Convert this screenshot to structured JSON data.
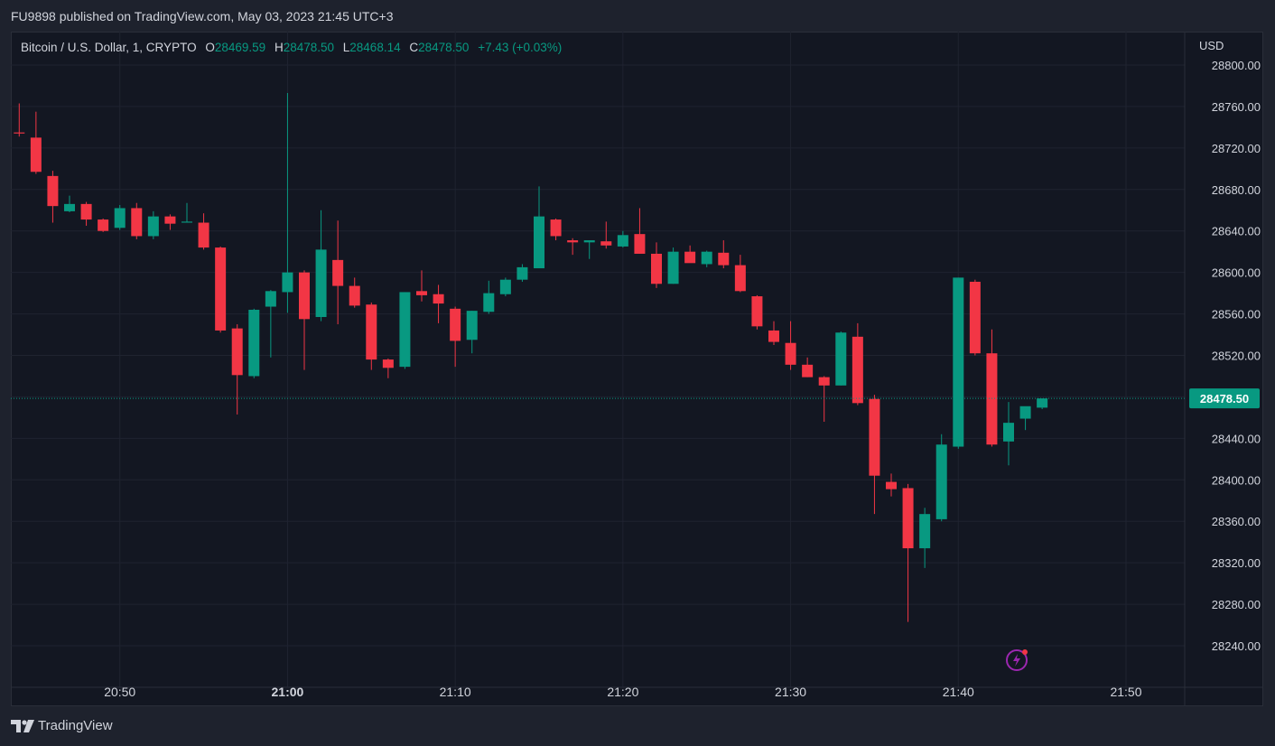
{
  "header": {
    "published": "FU9898 published on TradingView.com, May 03, 2023 21:45 UTC+3"
  },
  "legend": {
    "symbol": "Bitcoin / U.S. Dollar, 1, CRYPTO",
    "o_label": "O",
    "o_value": "28469.59",
    "h_label": "H",
    "h_value": "28478.50",
    "l_label": "L",
    "l_value": "28468.14",
    "c_label": "C",
    "c_value": "28478.50",
    "change": "+7.43 (+0.03%)"
  },
  "price_axis": {
    "currency": "USD"
  },
  "footer": {
    "brand": "TradingView"
  },
  "colors": {
    "up": "#089981",
    "down": "#f23645",
    "background": "#131722",
    "grid": "#1f2330",
    "text": "#d1d4dc"
  },
  "icons": {
    "brand_logo": "tradingview-logo-icon",
    "indicator": "lightning-bolt-icon"
  },
  "chart_data": {
    "type": "candlestick",
    "interval": "1 minute",
    "ylim": [
      28220,
      28820
    ],
    "yticks": [
      28800,
      28760,
      28720,
      28680,
      28640,
      28600,
      28560,
      28520,
      28480,
      28440,
      28400,
      28360,
      28320,
      28280,
      28240
    ],
    "ytick_labels": [
      "28800.00",
      "28760.00",
      "28720.00",
      "28680.00",
      "28640.00",
      "28600.00",
      "28560.00",
      "28520.00",
      "28440.00",
      "28400.00",
      "28360.00",
      "28320.00",
      "28280.00",
      "28240.00"
    ],
    "xlim": [
      "20:43:30",
      "21:53:30"
    ],
    "xticks": [
      "20:50",
      "21:00",
      "21:10",
      "21:20",
      "21:30",
      "21:40",
      "21:50"
    ],
    "xtick_bold": [
      "21:00"
    ],
    "last_price": 28478.5,
    "last_price_label": "28478.50",
    "grid": true,
    "candles": [
      {
        "t": "20:44",
        "o": 28735,
        "h": 28763,
        "l": 28731,
        "c": 28734
      },
      {
        "t": "20:45",
        "o": 28730,
        "h": 28755,
        "l": 28695,
        "c": 28697
      },
      {
        "t": "20:46",
        "o": 28693,
        "h": 28698,
        "l": 28648,
        "c": 28664
      },
      {
        "t": "20:47",
        "o": 28659,
        "h": 28674,
        "l": 28658,
        "c": 28666
      },
      {
        "t": "20:48",
        "o": 28666,
        "h": 28668,
        "l": 28645,
        "c": 28651
      },
      {
        "t": "20:49",
        "o": 28651,
        "h": 28652,
        "l": 28639,
        "c": 28640
      },
      {
        "t": "20:50",
        "o": 28643,
        "h": 28665,
        "l": 28641,
        "c": 28662
      },
      {
        "t": "20:51",
        "o": 28662,
        "h": 28667,
        "l": 28632,
        "c": 28635
      },
      {
        "t": "20:52",
        "o": 28635,
        "h": 28659,
        "l": 28632,
        "c": 28654
      },
      {
        "t": "20:53",
        "o": 28654,
        "h": 28656,
        "l": 28641,
        "c": 28647
      },
      {
        "t": "20:54",
        "o": 28648,
        "h": 28667,
        "l": 28648,
        "c": 28649
      },
      {
        "t": "20:55",
        "o": 28648,
        "h": 28657,
        "l": 28622,
        "c": 28624
      },
      {
        "t": "20:56",
        "o": 28624,
        "h": 28625,
        "l": 28542,
        "c": 28544
      },
      {
        "t": "20:57",
        "o": 28546,
        "h": 28550,
        "l": 28463,
        "c": 28501
      },
      {
        "t": "20:58",
        "o": 28500,
        "h": 28565,
        "l": 28498,
        "c": 28564
      },
      {
        "t": "20:59",
        "o": 28567,
        "h": 28583,
        "l": 28518,
        "c": 28582
      },
      {
        "t": "21:00",
        "o": 28581,
        "h": 28773,
        "l": 28561,
        "c": 28600
      },
      {
        "t": "21:01",
        "o": 28600,
        "h": 28602,
        "l": 28506,
        "c": 28555
      },
      {
        "t": "21:02",
        "o": 28557,
        "h": 28660,
        "l": 28553,
        "c": 28622
      },
      {
        "t": "21:03",
        "o": 28612,
        "h": 28650,
        "l": 28550,
        "c": 28587
      },
      {
        "t": "21:04",
        "o": 28587,
        "h": 28595,
        "l": 28566,
        "c": 28568
      },
      {
        "t": "21:05",
        "o": 28569,
        "h": 28571,
        "l": 28506,
        "c": 28516
      },
      {
        "t": "21:06",
        "o": 28516,
        "h": 28517,
        "l": 28498,
        "c": 28508
      },
      {
        "t": "21:07",
        "o": 28509,
        "h": 28581,
        "l": 28507,
        "c": 28581
      },
      {
        "t": "21:08",
        "o": 28582,
        "h": 28602,
        "l": 28572,
        "c": 28578
      },
      {
        "t": "21:09",
        "o": 28579,
        "h": 28588,
        "l": 28551,
        "c": 28570
      },
      {
        "t": "21:10",
        "o": 28565,
        "h": 28567,
        "l": 28509,
        "c": 28534
      },
      {
        "t": "21:11",
        "o": 28535,
        "h": 28563,
        "l": 28522,
        "c": 28563
      },
      {
        "t": "21:12",
        "o": 28562,
        "h": 28592,
        "l": 28560,
        "c": 28580
      },
      {
        "t": "21:13",
        "o": 28579,
        "h": 28595,
        "l": 28577,
        "c": 28593
      },
      {
        "t": "21:14",
        "o": 28593,
        "h": 28608,
        "l": 28591,
        "c": 28605
      },
      {
        "t": "21:15",
        "o": 28604,
        "h": 28683,
        "l": 28604,
        "c": 28654
      },
      {
        "t": "21:16",
        "o": 28651,
        "h": 28652,
        "l": 28631,
        "c": 28635
      },
      {
        "t": "21:17",
        "o": 28631,
        "h": 28633,
        "l": 28617,
        "c": 28629
      },
      {
        "t": "21:18",
        "o": 28629,
        "h": 28631,
        "l": 28613,
        "c": 28631
      },
      {
        "t": "21:19",
        "o": 28630,
        "h": 28649,
        "l": 28623,
        "c": 28626
      },
      {
        "t": "21:20",
        "o": 28625,
        "h": 28640,
        "l": 28624,
        "c": 28636
      },
      {
        "t": "21:21",
        "o": 28637,
        "h": 28662,
        "l": 28618,
        "c": 28618
      },
      {
        "t": "21:22",
        "o": 28618,
        "h": 28629,
        "l": 28585,
        "c": 28589
      },
      {
        "t": "21:23",
        "o": 28589,
        "h": 28624,
        "l": 28589,
        "c": 28620
      },
      {
        "t": "21:24",
        "o": 28620,
        "h": 28626,
        "l": 28611,
        "c": 28609
      },
      {
        "t": "21:25",
        "o": 28608,
        "h": 28621,
        "l": 28605,
        "c": 28620
      },
      {
        "t": "21:26",
        "o": 28619,
        "h": 28631,
        "l": 28604,
        "c": 28607
      },
      {
        "t": "21:27",
        "o": 28607,
        "h": 28617,
        "l": 28581,
        "c": 28582
      },
      {
        "t": "21:28",
        "o": 28577,
        "h": 28578,
        "l": 28545,
        "c": 28548
      },
      {
        "t": "21:29",
        "o": 28544,
        "h": 28553,
        "l": 28530,
        "c": 28533
      },
      {
        "t": "21:30",
        "o": 28532,
        "h": 28553,
        "l": 28506,
        "c": 28511
      },
      {
        "t": "21:31",
        "o": 28511,
        "h": 28518,
        "l": 28499,
        "c": 28499
      },
      {
        "t": "21:32",
        "o": 28499,
        "h": 28500,
        "l": 28456,
        "c": 28491
      },
      {
        "t": "21:33",
        "o": 28491,
        "h": 28543,
        "l": 28491,
        "c": 28542
      },
      {
        "t": "21:34",
        "o": 28538,
        "h": 28551,
        "l": 28472,
        "c": 28474
      },
      {
        "t": "21:35",
        "o": 28478,
        "h": 28482,
        "l": 28367,
        "c": 28404
      },
      {
        "t": "21:36",
        "o": 28398,
        "h": 28406,
        "l": 28384,
        "c": 28391
      },
      {
        "t": "21:37",
        "o": 28392,
        "h": 28396,
        "l": 28263,
        "c": 28334
      },
      {
        "t": "21:38",
        "o": 28334,
        "h": 28373,
        "l": 28315,
        "c": 28367
      },
      {
        "t": "21:39",
        "o": 28362,
        "h": 28444,
        "l": 28360,
        "c": 28434
      },
      {
        "t": "21:40",
        "o": 28432,
        "h": 28595,
        "l": 28430,
        "c": 28595
      },
      {
        "t": "21:41",
        "o": 28591,
        "h": 28593,
        "l": 28520,
        "c": 28522
      },
      {
        "t": "21:42",
        "o": 28522,
        "h": 28545,
        "l": 28432,
        "c": 28434
      },
      {
        "t": "21:43",
        "o": 28437,
        "h": 28475,
        "l": 28414,
        "c": 28455
      },
      {
        "t": "21:44",
        "o": 28459,
        "h": 28470,
        "l": 28448,
        "c": 28471
      },
      {
        "t": "21:45",
        "o": 28469.59,
        "h": 28478.5,
        "l": 28468.14,
        "c": 28478.5
      }
    ]
  }
}
